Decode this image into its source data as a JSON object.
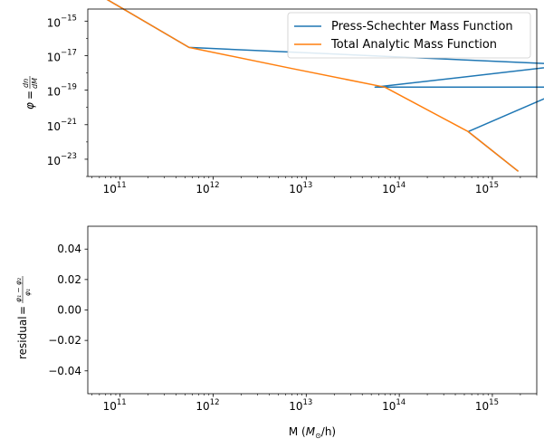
{
  "chart_data": [
    {
      "type": "line",
      "x_scale": "log",
      "y_scale": "log",
      "xlim": [
        45000000000,
        3000000000000000
      ],
      "ylim": [
        1e-24,
        5e-15
      ],
      "ylabel": "φ = dn/dM",
      "xtick_values": [
        100000000000,
        1000000000000,
        10000000000000,
        100000000000000,
        1000000000000000
      ],
      "xtick_labels": [
        {
          "base": "10",
          "exp": "11"
        },
        {
          "base": "10",
          "exp": "12"
        },
        {
          "base": "10",
          "exp": "13"
        },
        {
          "base": "10",
          "exp": "14"
        },
        {
          "base": "10",
          "exp": "15"
        }
      ],
      "ytick_values": [
        1e-15,
        1e-17,
        1e-19,
        1e-21,
        1e-23
      ],
      "ytick_labels": [
        {
          "base": "10",
          "exp": "−15"
        },
        {
          "base": "10",
          "exp": "−17"
        },
        {
          "base": "10",
          "exp": "−19"
        },
        {
          "base": "10",
          "exp": "−21"
        },
        {
          "base": "10",
          "exp": "−23"
        }
      ],
      "legend_position": "top-right",
      "series": [
        {
          "name": "Press-Schechter Mass Function",
          "color": "#1f77b4",
          "x": [
            70000000000,
            550000000000,
            7000000000000000,
            55000000000000,
            7000000000000000,
            550000000000000,
            1900000000000000
          ],
          "y": [
            2e-14,
            3e-17,
            3e-18,
            1.5e-19,
            1.5e-19,
            4e-22,
            2e-24
          ]
        },
        {
          "name": "Total Analytic Mass Function",
          "color": "#ff7f0e",
          "x": [
            70000000000,
            550000000000,
            7000000000000,
            70000000000000,
            550000000000000,
            1900000000000000
          ],
          "y": [
            2e-14,
            3e-17,
            1.8e-18,
            1.5e-19,
            4e-22,
            2e-24
          ]
        }
      ]
    },
    {
      "type": "line",
      "x_scale": "log",
      "xlim": [
        45000000000,
        3000000000000000
      ],
      "ylim": [
        -0.055,
        0.055
      ],
      "xlabel": "M (M⊙/h)",
      "ylabel": "residual = (φ₁ − φ₂)/φ₁",
      "xtick_values": [
        100000000000,
        1000000000000,
        10000000000000,
        100000000000000,
        1000000000000000
      ],
      "xtick_labels": [
        {
          "base": "10",
          "exp": "11"
        },
        {
          "base": "10",
          "exp": "12"
        },
        {
          "base": "10",
          "exp": "13"
        },
        {
          "base": "10",
          "exp": "14"
        },
        {
          "base": "10",
          "exp": "15"
        }
      ],
      "ytick_values": [
        0.04,
        0.02,
        0.0,
        -0.02,
        -0.04
      ],
      "ytick_labels": [
        "0.04",
        "0.02",
        "0.00",
        "−0.02",
        "−0.04"
      ],
      "series": []
    }
  ]
}
